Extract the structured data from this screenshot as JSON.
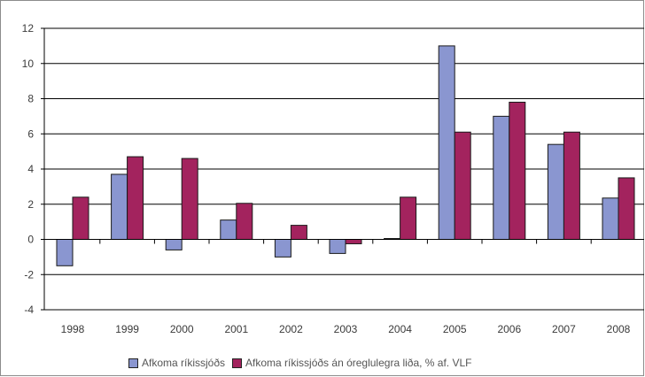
{
  "chart_data": {
    "type": "bar",
    "categories": [
      "1998",
      "1999",
      "2000",
      "2001",
      "2002",
      "2003",
      "2004",
      "2005",
      "2006",
      "2007",
      "2008"
    ],
    "series": [
      {
        "name": "Afkoma ríkissjóðs",
        "color": "#8a96d0",
        "values": [
          -1.5,
          3.7,
          -0.6,
          1.1,
          -1.0,
          -0.8,
          0.05,
          11.0,
          7.0,
          5.4,
          2.35
        ]
      },
      {
        "name": "Afkoma ríkissjóðs án óreglulegra liða, % af. VLF",
        "color": "#a3235e",
        "values": [
          2.4,
          4.7,
          4.6,
          2.05,
          0.8,
          -0.25,
          2.4,
          6.1,
          7.8,
          6.1,
          3.5
        ]
      }
    ],
    "yticks": [
      "12",
      "10",
      "8",
      "6",
      "4",
      "2",
      "0",
      "-2",
      "-4"
    ],
    "ylim": [
      -4,
      12
    ],
    "grid": true,
    "legend_position": "bottom"
  }
}
